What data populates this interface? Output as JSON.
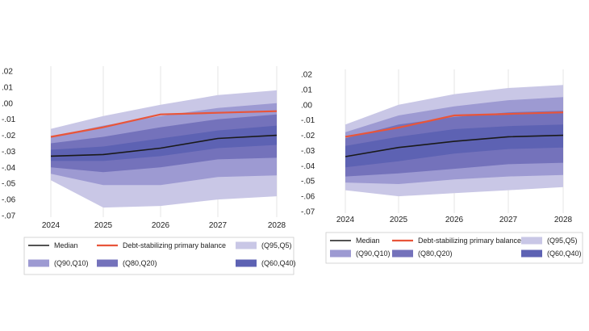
{
  "colors": {
    "band_95_5": "#c9c7e6",
    "band_90_10": "#9d9ad2",
    "band_80_20": "#7472bb",
    "band_60_40": "#5d62b3",
    "median": "#1a1a1a",
    "stabilizing": "#e8553a",
    "grid": "#e6e6e6",
    "legend_border": "#cccccc"
  },
  "legend": {
    "median": "Median",
    "stabilizing": "Debt-stabilizing primary balance",
    "q95_5": "(Q95,Q5)",
    "q90_10": "(Q90,Q10)",
    "q80_20": "(Q80,Q20)",
    "q60_40": "(Q60,Q40)"
  },
  "chart_data": [
    {
      "type": "area",
      "title": "",
      "xlabel": "",
      "ylabel": "",
      "x": [
        2024,
        2025,
        2026,
        2027,
        2028
      ],
      "x_tick_labels": [
        "2024",
        "2025",
        "2026",
        "2027",
        "2028"
      ],
      "ylim": [
        -0.07,
        0.02
      ],
      "y_ticks": [
        0.02,
        0.01,
        0.0,
        -0.01,
        -0.02,
        -0.03,
        -0.04,
        -0.05,
        -0.06,
        -0.07
      ],
      "y_tick_labels": [
        ".02",
        ".01",
        ".00",
        "-.01",
        "-.02",
        "-.03",
        "-.04",
        "-.05",
        "-.06",
        "-.07"
      ],
      "bands": [
        {
          "name": "(Q95,Q5)",
          "upper": [
            -0.016,
            -0.008,
            -0.001,
            0.005,
            0.008
          ],
          "lower": [
            -0.048,
            -0.065,
            -0.064,
            -0.06,
            -0.058
          ]
        },
        {
          "name": "(Q90,Q10)",
          "upper": [
            -0.021,
            -0.014,
            -0.008,
            -0.003,
            0.0
          ],
          "lower": [
            -0.044,
            -0.051,
            -0.051,
            -0.046,
            -0.045
          ]
        },
        {
          "name": "(Q80,Q20)",
          "upper": [
            -0.025,
            -0.021,
            -0.015,
            -0.01,
            -0.007
          ],
          "lower": [
            -0.04,
            -0.043,
            -0.04,
            -0.035,
            -0.034
          ]
        },
        {
          "name": "(Q60,Q40)",
          "upper": [
            -0.029,
            -0.027,
            -0.022,
            -0.017,
            -0.014
          ],
          "lower": [
            -0.036,
            -0.036,
            -0.033,
            -0.028,
            -0.026
          ]
        }
      ],
      "series": [
        {
          "name": "Median",
          "values": [
            -0.033,
            -0.032,
            -0.028,
            -0.022,
            -0.02
          ]
        },
        {
          "name": "Debt-stabilizing primary balance",
          "values": [
            -0.021,
            -0.015,
            -0.007,
            -0.006,
            -0.005
          ]
        }
      ]
    },
    {
      "type": "area",
      "title": "",
      "xlabel": "",
      "ylabel": "",
      "x": [
        2024,
        2025,
        2026,
        2027,
        2028
      ],
      "x_tick_labels": [
        "2024",
        "2025",
        "2026",
        "2027",
        "2028"
      ],
      "ylim": [
        -0.07,
        0.02
      ],
      "y_ticks": [
        0.02,
        0.01,
        0.0,
        -0.01,
        -0.02,
        -0.03,
        -0.04,
        -0.05,
        -0.06,
        -0.07
      ],
      "y_tick_labels": [
        ".02",
        ".01",
        ".00",
        "-.01",
        "-.02",
        "-.03",
        "-.04",
        "-.05",
        "-.06",
        "-.07"
      ],
      "bands": [
        {
          "name": "(Q95,Q5)",
          "upper": [
            -0.013,
            0.0,
            0.007,
            0.011,
            0.013
          ],
          "lower": [
            -0.056,
            -0.06,
            -0.058,
            -0.056,
            -0.054
          ]
        },
        {
          "name": "(Q90,Q10)",
          "upper": [
            -0.018,
            -0.007,
            -0.001,
            0.003,
            0.005
          ],
          "lower": [
            -0.051,
            -0.052,
            -0.049,
            -0.047,
            -0.046
          ]
        },
        {
          "name": "(Q80,Q20)",
          "upper": [
            -0.022,
            -0.013,
            -0.008,
            -0.005,
            -0.004
          ],
          "lower": [
            -0.047,
            -0.045,
            -0.042,
            -0.039,
            -0.038
          ]
        },
        {
          "name": "(Q60,Q40)",
          "upper": [
            -0.027,
            -0.021,
            -0.016,
            -0.014,
            -0.013
          ],
          "lower": [
            -0.041,
            -0.037,
            -0.032,
            -0.029,
            -0.028
          ]
        }
      ],
      "series": [
        {
          "name": "Median",
          "values": [
            -0.034,
            -0.028,
            -0.024,
            -0.021,
            -0.02
          ]
        },
        {
          "name": "Debt-stabilizing primary balance",
          "values": [
            -0.021,
            -0.015,
            -0.007,
            -0.006,
            -0.005
          ]
        }
      ]
    }
  ]
}
